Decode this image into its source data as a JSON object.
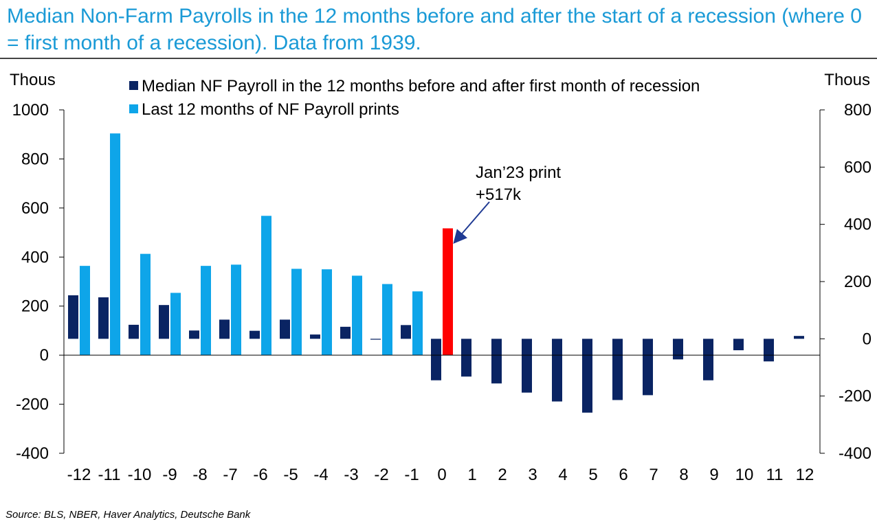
{
  "title": "Median Non-Farm Payrolls in the 12 months before and after the start of a recession (where 0 = first month of a recession). Data from 1939.",
  "source": "Source: BLS, NBER, Haver Analytics, Deutsche Bank",
  "colors": {
    "median": "#0a2463",
    "last12": "#0ea5e9",
    "highlight": "#ff0000",
    "title": "#1a9ad6"
  },
  "chart_data": {
    "type": "bar",
    "left_axis_label": "Thous",
    "right_axis_label": "Thous",
    "left_ylim": [
      -400,
      1000
    ],
    "left_ticks": [
      -400,
      -200,
      0,
      200,
      400,
      600,
      800,
      1000
    ],
    "right_ylim": [
      -400,
      800
    ],
    "right_ticks": [
      -400,
      -200,
      0,
      200,
      400,
      600,
      800
    ],
    "categories": [
      "-12",
      "-11",
      "-10",
      "-9",
      "-8",
      "-7",
      "-6",
      "-5",
      "-4",
      "-3",
      "-2",
      "-1",
      "0",
      "1",
      "2",
      "3",
      "4",
      "5",
      "6",
      "7",
      "8",
      "9",
      "10",
      "11",
      "12"
    ],
    "series": [
      {
        "name": "Median NF Payroll in the 12 months before and after first month of recession",
        "axis": "right",
        "values": [
          152,
          145,
          49,
          118,
          29,
          67,
          28,
          67,
          15,
          42,
          -3,
          48,
          -145,
          -132,
          -156,
          -188,
          -219,
          -258,
          -214,
          -197,
          -72,
          -145,
          -40,
          -79,
          10
        ]
      },
      {
        "name": "Last 12 months of NF Payroll prints",
        "axis": "left",
        "values": [
          364,
          904,
          413,
          254,
          364,
          369,
          568,
          352,
          350,
          324,
          290,
          260,
          517,
          null,
          null,
          null,
          null,
          null,
          null,
          null,
          null,
          null,
          null,
          null,
          null
        ]
      }
    ],
    "annotation": {
      "line1": "Jan’23 print",
      "line2": "+517k",
      "category": "0",
      "value": 517
    },
    "legend_position": "top"
  }
}
